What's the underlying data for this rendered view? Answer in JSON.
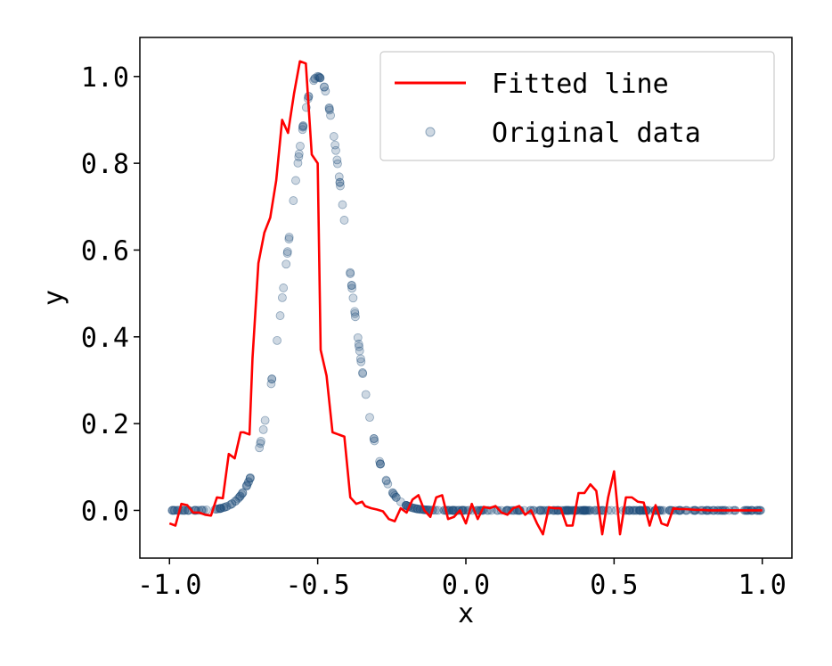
{
  "chart_data": {
    "type": "scatter",
    "title": "",
    "xlabel": "x",
    "ylabel": "y",
    "xlim": [
      -1.1,
      1.1
    ],
    "ylim": [
      -0.11,
      1.09
    ],
    "xticks": [
      -1.0,
      -0.5,
      0.0,
      0.5,
      1.0
    ],
    "xtick_labels": [
      "-1.0",
      "-0.5",
      "0.0",
      "0.5",
      "1.0"
    ],
    "yticks": [
      0.0,
      0.2,
      0.4,
      0.6,
      0.8,
      1.0
    ],
    "ytick_labels": [
      "0.0",
      "0.2",
      "0.4",
      "0.6",
      "0.8",
      "1.0"
    ],
    "grid": false,
    "legend_position": "top-right",
    "series": [
      {
        "name": "Original data",
        "kind": "scatter",
        "color": "#1f4e79",
        "function": "gaussian",
        "center": -0.5,
        "sigma": 0.1,
        "amplitude": 1.0,
        "x_range": [
          -1.0,
          1.0
        ],
        "count": 400
      },
      {
        "name": "Fitted line",
        "kind": "line",
        "color": "#ff0000",
        "x": [
          -1.0,
          -0.98,
          -0.96,
          -0.94,
          -0.92,
          -0.9,
          -0.88,
          -0.86,
          -0.84,
          -0.82,
          -0.8,
          -0.78,
          -0.76,
          -0.75,
          -0.73,
          -0.72,
          -0.7,
          -0.68,
          -0.66,
          -0.64,
          -0.62,
          -0.6,
          -0.58,
          -0.56,
          -0.54,
          -0.52,
          -0.51,
          -0.5,
          -0.49,
          -0.47,
          -0.45,
          -0.43,
          -0.41,
          -0.39,
          -0.37,
          -0.35,
          -0.34,
          -0.32,
          -0.3,
          -0.28,
          -0.26,
          -0.24,
          -0.22,
          -0.2,
          -0.18,
          -0.16,
          -0.14,
          -0.12,
          -0.1,
          -0.08,
          -0.06,
          -0.04,
          -0.02,
          0.0,
          0.02,
          0.04,
          0.06,
          0.08,
          0.1,
          0.12,
          0.14,
          0.16,
          0.18,
          0.2,
          0.22,
          0.24,
          0.26,
          0.28,
          0.3,
          0.32,
          0.34,
          0.36,
          0.38,
          0.4,
          0.42,
          0.44,
          0.46,
          0.48,
          0.5,
          0.52,
          0.54,
          0.56,
          0.58,
          0.6,
          0.62,
          0.64,
          0.66,
          0.68,
          0.7,
          0.72,
          0.74,
          0.76,
          0.78,
          0.8,
          0.82,
          0.84,
          0.86,
          0.88,
          0.9,
          0.92,
          0.94,
          0.96,
          0.98,
          1.0
        ],
        "values": [
          -0.03,
          -0.035,
          0.015,
          0.012,
          -0.005,
          -0.005,
          -0.01,
          -0.012,
          0.03,
          0.028,
          0.13,
          0.12,
          0.18,
          0.18,
          0.175,
          0.35,
          0.57,
          0.64,
          0.675,
          0.76,
          0.9,
          0.87,
          0.96,
          1.035,
          1.03,
          0.82,
          0.81,
          0.8,
          0.37,
          0.31,
          0.18,
          0.175,
          0.17,
          0.03,
          0.015,
          0.02,
          0.01,
          0.005,
          0.002,
          -0.002,
          -0.02,
          -0.025,
          0.005,
          -0.005,
          0.025,
          0.035,
          0.0,
          -0.015,
          0.03,
          0.035,
          -0.02,
          -0.015,
          0.0,
          -0.03,
          0.015,
          -0.02,
          0.008,
          0.005,
          0.01,
          -0.005,
          -0.01,
          0.005,
          0.01,
          -0.01,
          0.0,
          -0.03,
          -0.055,
          0.007,
          0.005,
          0.005,
          -0.035,
          -0.035,
          0.04,
          0.04,
          0.06,
          0.045,
          -0.055,
          0.03,
          0.09,
          -0.055,
          0.03,
          0.03,
          0.02,
          0.018,
          -0.035,
          0.012,
          -0.03,
          -0.035,
          0.005,
          0.003,
          0.003,
          0.002,
          0.001,
          0.001,
          0.0,
          0.0,
          0.0,
          0.0,
          0.0,
          0.0,
          0.0,
          0.0,
          0.0,
          0.0
        ]
      }
    ]
  }
}
